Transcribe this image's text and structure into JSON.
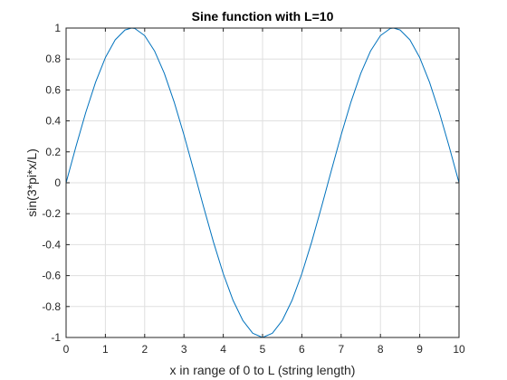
{
  "chart_data": {
    "type": "line",
    "title": "Sine function with L=10",
    "xlabel": "x in range of 0 to L (string length)",
    "ylabel": "sin(3*pi*x/L)",
    "xlim": [
      0,
      10
    ],
    "ylim": [
      -1,
      1
    ],
    "grid": true,
    "legend": "none",
    "x_ticks": [
      "0",
      "1",
      "2",
      "3",
      "4",
      "5",
      "6",
      "7",
      "8",
      "9",
      "10"
    ],
    "y_ticks": [
      "-1",
      "-0.8",
      "-0.6",
      "-0.4",
      "-0.2",
      "0",
      "0.2",
      "0.4",
      "0.6",
      "0.8",
      "1"
    ],
    "series": [
      {
        "color": "#0072BD",
        "x": [
          0,
          0.25,
          0.5,
          0.75,
          1,
          1.25,
          1.5,
          1.6667,
          1.75,
          2,
          2.25,
          2.5,
          2.75,
          3,
          3.25,
          3.3333,
          3.5,
          3.75,
          4,
          4.25,
          4.5,
          4.75,
          5,
          5.25,
          5.5,
          5.75,
          6,
          6.25,
          6.5,
          6.6667,
          6.75,
          7,
          7.25,
          7.5,
          7.75,
          8,
          8.25,
          8.3333,
          8.5,
          8.75,
          9,
          9.25,
          9.5,
          9.75,
          10
        ],
        "y": [
          0,
          0.2334,
          0.454,
          0.6494,
          0.809,
          0.9239,
          0.9877,
          1,
          0.9969,
          0.9511,
          0.8526,
          0.7071,
          0.5225,
          0.309,
          0.0785,
          0,
          -0.1564,
          -0.3827,
          -0.5878,
          -0.7604,
          -0.891,
          -0.9724,
          -1,
          -0.9724,
          -0.891,
          -0.7604,
          -0.5878,
          -0.3827,
          -0.1564,
          0,
          0.0785,
          0.309,
          0.5225,
          0.7071,
          0.8526,
          0.9511,
          0.9969,
          1,
          0.9877,
          0.9239,
          0.809,
          0.6494,
          0.454,
          0.2334,
          0
        ]
      }
    ]
  }
}
